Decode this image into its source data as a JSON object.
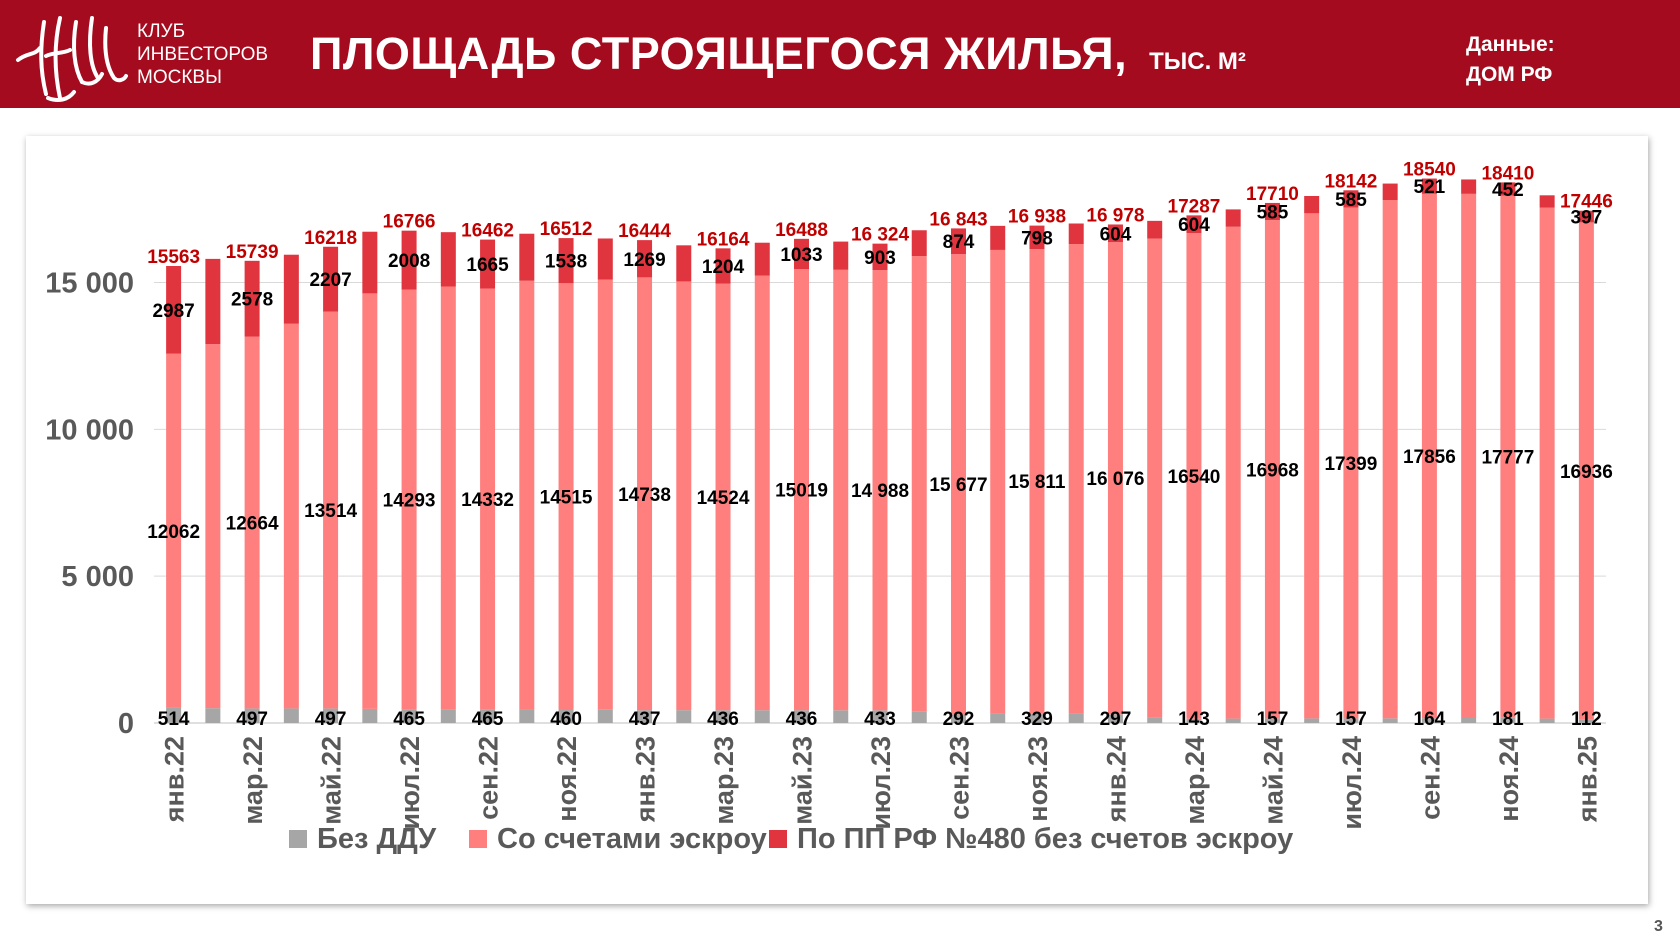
{
  "header": {
    "logo_lines": [
      "КЛУБ",
      "ИНВЕСТОРОВ",
      "МОСКВЫ"
    ],
    "title": "ПЛОЩАДЬ СТРОЯЩЕГОСЯ ЖИЛЬЯ,",
    "title_unit": "ТЫС. М²",
    "source_label": "Данные:",
    "source_value": "ДОМ РФ"
  },
  "page_number": "3",
  "colors": {
    "header_bg": "#a50b1e",
    "no_ddu": "#a6a6a6",
    "escrow": "#ff7f7f",
    "pp480": "#e0353f",
    "total_label": "#c00000",
    "segment_label": "#000000",
    "axis_text": "#595959"
  },
  "chart_data": {
    "type": "bar",
    "stacked": true,
    "categories": [
      "янв.22",
      "фев.22",
      "мар.22",
      "апр.22",
      "май.22",
      "июн.22",
      "июл.22",
      "авг.22",
      "сен.22",
      "окт.22",
      "ноя.22",
      "дек.22",
      "янв.23",
      "фев.23",
      "мар.23",
      "апр.23",
      "май.23",
      "июн.23",
      "июл.23",
      "авг.23",
      "сен.23",
      "окт.23",
      "ноя.23",
      "дек.23",
      "янв.24",
      "фев.24",
      "мар.24",
      "апр.24",
      "май.24",
      "июн.24",
      "июл.24",
      "авг.24",
      "сен.24",
      "окт.24",
      "ноя.24",
      "дек.24",
      "янв.25"
    ],
    "tick_labels": [
      "янв.22",
      "",
      "мар.22",
      "",
      "май.22",
      "",
      "июл.22",
      "",
      "сен.22",
      "",
      "ноя.22",
      "",
      "янв.23",
      "",
      "мар.23",
      "",
      "май.23",
      "",
      "июл.23",
      "",
      "сен.23",
      "",
      "ноя.23",
      "",
      "янв.24",
      "",
      "мар.24",
      "",
      "май.24",
      "",
      "июл.24",
      "",
      "сен.24",
      "",
      "ноя.24",
      "",
      "янв.25"
    ],
    "series": [
      {
        "name": "Без ДДУ",
        "color": "#a6a6a6",
        "values": [
          514,
          505,
          497,
          497,
          497,
          480,
          465,
          465,
          465,
          462,
          460,
          450,
          437,
          437,
          436,
          436,
          436,
          434,
          433,
          400,
          292,
          310,
          329,
          310,
          297,
          200,
          143,
          150,
          157,
          157,
          157,
          160,
          164,
          170,
          181,
          150,
          112
        ],
        "labels": [
          "514",
          "",
          "497",
          "",
          "497",
          "",
          "465",
          "",
          "465",
          "",
          "460",
          "",
          "437",
          "",
          "436",
          "",
          "436",
          "",
          "433",
          "",
          "292",
          "",
          "329",
          "",
          "297",
          "",
          "143",
          "",
          "157",
          "",
          "157",
          "",
          "164",
          "",
          "181",
          "",
          "112"
        ]
      },
      {
        "name": "Со счетами эскроу",
        "color": "#ff7f7f",
        "values": [
          12062,
          12400,
          12664,
          13100,
          13514,
          14150,
          14293,
          14400,
          14332,
          14600,
          14515,
          14650,
          14738,
          14600,
          14524,
          14800,
          15019,
          15000,
          14988,
          15500,
          15677,
          15800,
          15811,
          16000,
          16076,
          16300,
          16540,
          16750,
          16968,
          17200,
          17399,
          17650,
          17856,
          17850,
          17777,
          17400,
          16936
        ],
        "labels": [
          "12062",
          "",
          "12664",
          "",
          "13514",
          "",
          "14293",
          "",
          "14332",
          "",
          "14515",
          "",
          "14738",
          "",
          "14524",
          "",
          "15019",
          "",
          "14 988",
          "",
          "15 677",
          "",
          "15 811",
          "",
          "16 076",
          "",
          "16540",
          "",
          "16968",
          "",
          "17399",
          "",
          "17856",
          "",
          "17777",
          "",
          "16936"
        ]
      },
      {
        "name": "По ПП РФ №480 без счетов эскроу",
        "color": "#e0353f",
        "values": [
          2987,
          2900,
          2578,
          2350,
          2207,
          2100,
          2008,
          1850,
          1665,
          1600,
          1538,
          1400,
          1269,
          1230,
          1204,
          1120,
          1033,
          960,
          903,
          880,
          874,
          820,
          798,
          700,
          604,
          600,
          604,
          590,
          585,
          590,
          585,
          560,
          521,
          490,
          452,
          420,
          397
        ],
        "labels": [
          "2987",
          "",
          "2578",
          "",
          "2207",
          "",
          "2008",
          "",
          "1665",
          "",
          "1538",
          "",
          "1269",
          "",
          "1204",
          "",
          "1033",
          "",
          "903",
          "",
          "874",
          "",
          "798",
          "",
          "604",
          "",
          "604",
          "",
          "585",
          "",
          "585",
          "",
          "521",
          "",
          "452",
          "",
          "397"
        ]
      }
    ],
    "totals": [
      15563,
      15805,
      15739,
      15947,
      16218,
      16730,
      16766,
      16715,
      16462,
      16662,
      16512,
      16500,
      16444,
      16267,
      16164,
      16356,
      16488,
      16394,
      16324,
      16780,
      16843,
      16930,
      16938,
      17010,
      16978,
      17100,
      17287,
      17490,
      17710,
      17947,
      18142,
      18370,
      18540,
      18510,
      18410,
      17970,
      17446
    ],
    "total_labels": [
      "15563",
      "",
      "15739",
      "",
      "16218",
      "",
      "16766",
      "",
      "16462",
      "",
      "16512",
      "",
      "16444",
      "",
      "16164",
      "",
      "16488",
      "",
      "16 324",
      "",
      "16 843",
      "",
      "16 938",
      "",
      "16 978",
      "",
      "17287",
      "",
      "17710",
      "",
      "18142",
      "",
      "18540",
      "",
      "18410",
      "",
      "17446"
    ],
    "y_ticks": [
      0,
      5000,
      10000,
      15000
    ],
    "y_tick_labels": [
      "0",
      "5 000",
      "10 000",
      "15 000"
    ],
    "ylim": [
      0,
      18900
    ],
    "grid": true,
    "legend_position": "bottom"
  }
}
